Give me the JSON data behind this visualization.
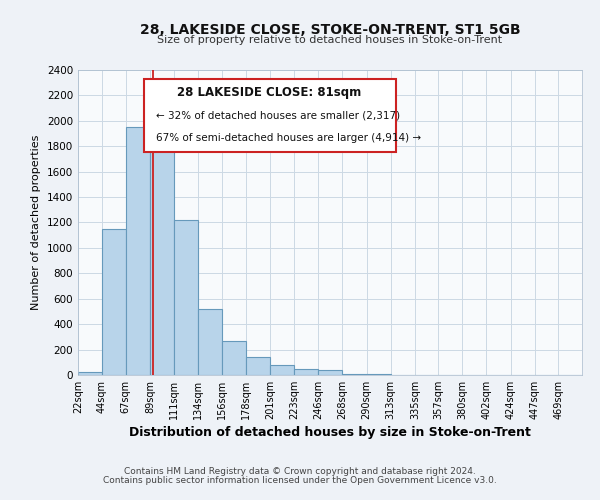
{
  "title": "28, LAKESIDE CLOSE, STOKE-ON-TRENT, ST1 5GB",
  "subtitle": "Size of property relative to detached houses in Stoke-on-Trent",
  "xlabel": "Distribution of detached houses by size in Stoke-on-Trent",
  "ylabel": "Number of detached properties",
  "bar_color": "#b8d4ea",
  "bar_edge_color": "#6699bb",
  "annotation_box_edge": "#cc2222",
  "reference_line_color": "#cc2222",
  "annotation_title": "28 LAKESIDE CLOSE: 81sqm",
  "annotation_line1": "← 32% of detached houses are smaller (2,317)",
  "annotation_line2": "67% of semi-detached houses are larger (4,914) →",
  "reference_line_x": 81,
  "categories": [
    "22sqm",
    "44sqm",
    "67sqm",
    "89sqm",
    "111sqm",
    "134sqm",
    "156sqm",
    "178sqm",
    "201sqm",
    "223sqm",
    "246sqm",
    "268sqm",
    "290sqm",
    "313sqm",
    "335sqm",
    "357sqm",
    "380sqm",
    "402sqm",
    "424sqm",
    "447sqm",
    "469sqm"
  ],
  "bin_edges": [
    11,
    33,
    55.5,
    78,
    100,
    122.5,
    145,
    167,
    189.5,
    212,
    234.5,
    257,
    279.5,
    302,
    324.5,
    346,
    368.5,
    391,
    413.5,
    436,
    458,
    480
  ],
  "values": [
    25,
    1150,
    1950,
    1840,
    1220,
    520,
    265,
    145,
    75,
    45,
    38,
    5,
    5,
    2,
    1,
    1,
    0,
    0,
    0,
    0,
    0
  ],
  "ylim": [
    0,
    2400
  ],
  "yticks": [
    0,
    200,
    400,
    600,
    800,
    1000,
    1200,
    1400,
    1600,
    1800,
    2000,
    2200,
    2400
  ],
  "footnote1": "Contains HM Land Registry data © Crown copyright and database right 2024.",
  "footnote2": "Contains public sector information licensed under the Open Government Licence v3.0.",
  "bg_color": "#eef2f7",
  "plot_bg_color": "#f8fafc",
  "grid_color": "#ccd8e4"
}
